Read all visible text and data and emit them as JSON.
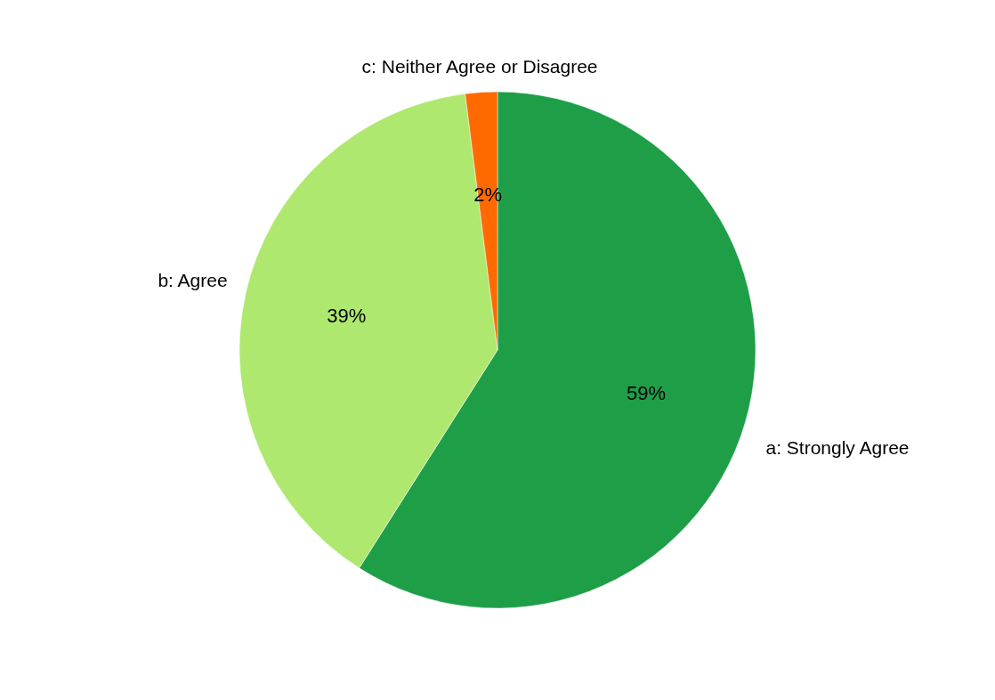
{
  "chart_data": {
    "type": "pie",
    "categories": [
      "a: Strongly Agree",
      "b: Agree",
      "c: Neither Agree or Disagree"
    ],
    "values": [
      59,
      39,
      2
    ],
    "colors": [
      "#1f9e48",
      "#aee86f",
      "#ff6a00"
    ],
    "value_labels": [
      "59%",
      "39%",
      "2%"
    ],
    "legend": false
  }
}
